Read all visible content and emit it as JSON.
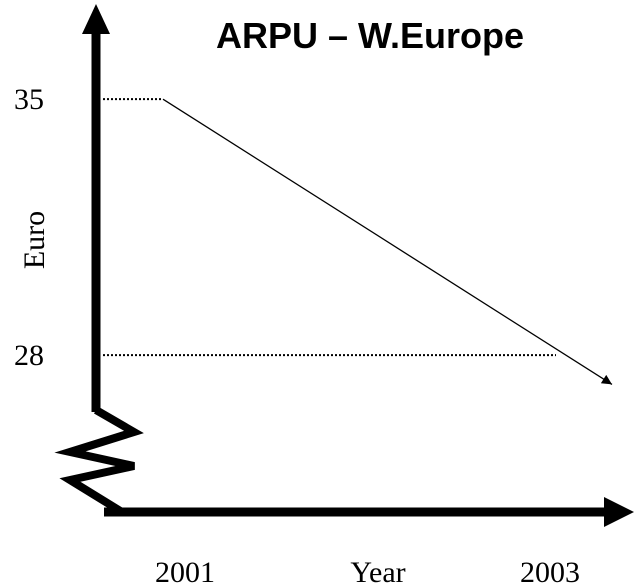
{
  "chart_data": {
    "type": "line",
    "title": "ARPU – W.Europe",
    "x_label": "Year",
    "y_label": "Euro",
    "categories": [
      "2001",
      "2003"
    ],
    "values": [
      35,
      27.2
    ],
    "color": "#000000",
    "ylim": [
      26.5,
      37.4
    ],
    "yticks": [
      35,
      28
    ],
    "grid": true
  }
}
